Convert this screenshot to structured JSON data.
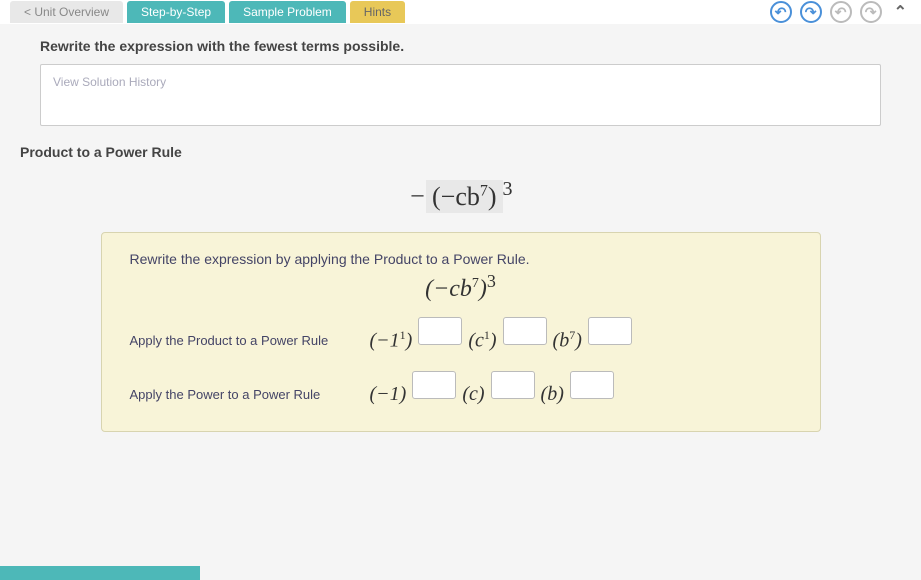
{
  "tabs": {
    "overview": "< Unit Overview",
    "step": "Step-by-Step",
    "sample": "Sample Problem",
    "hints": "Hints"
  },
  "question": "Rewrite the expression with the fewest terms possible.",
  "solution_link": "View Solution History",
  "rule_title": "Product to a Power Rule",
  "main_expression": {
    "prefix_minus": "−",
    "open": "(",
    "inner": "−cb",
    "inner_exp": "7",
    "close": ")",
    "outer_exp": "3"
  },
  "panel": {
    "instruction": "Rewrite the expression by applying the Product to a Power Rule.",
    "expr": {
      "open": "(",
      "inner": "−cb",
      "inner_exp": "7",
      "close": ")",
      "outer_exp": "3"
    },
    "row1": {
      "label": "Apply the Product to a Power Rule",
      "t1": "(−1",
      "t1_sup": "1",
      "t1_close": ")",
      "t2": "(c",
      "t2_sup": "1",
      "t2_close": ")",
      "t3": "(b",
      "t3_sup": "7",
      "t3_close": ")"
    },
    "row2": {
      "label": "Apply the Power to a Power Rule",
      "t1": "(−1)",
      "t2": "(c)",
      "t3": "(b)"
    }
  },
  "colors": {
    "teal": "#4db8b8",
    "yellow": "#e8c858",
    "panel_bg": "#f8f4d8",
    "panel_border": "#d8d4b0"
  },
  "footer": ""
}
